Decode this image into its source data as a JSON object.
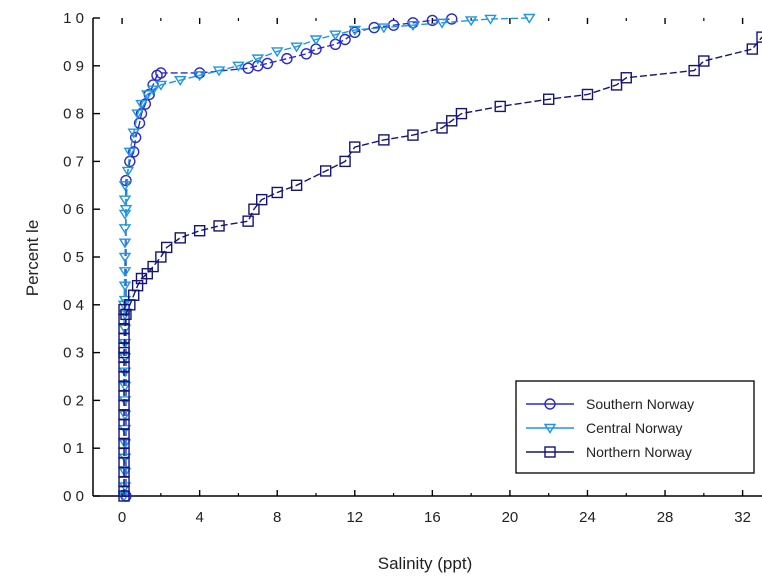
{
  "chart_data": {
    "type": "line",
    "title": "",
    "xlabel": "Salinity (ppt)",
    "ylabel": "Percent le",
    "xlim": [
      -1.5,
      33
    ],
    "ylim": [
      0,
      1
    ],
    "x_ticks": [
      0,
      4,
      8,
      12,
      16,
      20,
      24,
      28,
      32
    ],
    "x_tick_labels": [
      "0",
      "4",
      "8",
      "12",
      "16",
      "20",
      "24",
      "28",
      "32"
    ],
    "y_ticks": [
      0,
      0.1,
      0.2,
      0.3,
      0.4,
      0.5,
      0.6,
      0.7,
      0.8,
      0.9,
      1.0
    ],
    "y_tick_labels": [
      "0 0",
      "0 1",
      "0 2",
      "0 3",
      "0 4",
      "0 5",
      "0 6",
      "0 7",
      "0 8",
      "0 9",
      "1 0"
    ],
    "grid": false,
    "legend_position": "bottom-right",
    "series": [
      {
        "name": "Southern Norway",
        "color": "#2a2acc",
        "marker": "circle",
        "x": [
          0.2,
          0.2,
          0.4,
          0.6,
          0.7,
          0.9,
          1.0,
          1.2,
          1.4,
          1.6,
          1.8,
          2.0,
          4.0,
          6.5,
          7.0,
          7.5,
          8.5,
          9.5,
          10.0,
          11.0,
          11.5,
          12.0,
          13.0,
          14.0,
          15.0,
          16.0,
          17.0
        ],
        "y": [
          0.0,
          0.66,
          0.7,
          0.72,
          0.75,
          0.78,
          0.8,
          0.82,
          0.84,
          0.86,
          0.88,
          0.885,
          0.885,
          0.895,
          0.9,
          0.905,
          0.915,
          0.925,
          0.935,
          0.945,
          0.955,
          0.97,
          0.98,
          0.985,
          0.99,
          0.995,
          0.998
        ]
      },
      {
        "name": "Central Norway",
        "color": "#1e96e6",
        "marker": "triangle-down",
        "x": [
          0.1,
          0.1,
          0.2,
          0.3,
          0.4,
          0.6,
          0.8,
          1.0,
          1.3,
          1.6,
          2.0,
          3.0,
          4.0,
          5.0,
          6.0,
          7.0,
          8.0,
          9.0,
          10.0,
          11.0,
          12.0,
          13.5,
          15.0,
          16.5,
          18.0,
          19.0,
          21.0
        ],
        "y": [
          0.0,
          0.4,
          0.6,
          0.68,
          0.72,
          0.76,
          0.8,
          0.82,
          0.84,
          0.85,
          0.86,
          0.87,
          0.88,
          0.89,
          0.9,
          0.915,
          0.93,
          0.94,
          0.955,
          0.965,
          0.975,
          0.98,
          0.985,
          0.99,
          0.995,
          0.998,
          1.0
        ]
      },
      {
        "name": "Northern Norway",
        "color": "#141478",
        "marker": "square",
        "x": [
          0.1,
          0.1,
          0.2,
          0.4,
          0.6,
          0.8,
          1.0,
          1.3,
          1.6,
          2.0,
          2.3,
          3.0,
          4.0,
          5.0,
          6.5,
          6.8,
          7.2,
          8.0,
          9.0,
          10.5,
          11.5,
          12.0,
          13.5,
          15.0,
          16.5,
          17.0,
          17.5,
          19.5,
          22.0,
          24.0,
          25.5,
          26.0,
          29.5,
          30.0,
          32.5,
          33.0
        ],
        "y": [
          0.0,
          0.3,
          0.38,
          0.4,
          0.42,
          0.44,
          0.455,
          0.465,
          0.48,
          0.5,
          0.52,
          0.54,
          0.555,
          0.565,
          0.575,
          0.6,
          0.62,
          0.635,
          0.65,
          0.68,
          0.7,
          0.73,
          0.745,
          0.755,
          0.77,
          0.785,
          0.8,
          0.815,
          0.83,
          0.84,
          0.86,
          0.875,
          0.89,
          0.91,
          0.935,
          0.96
        ]
      }
    ]
  }
}
